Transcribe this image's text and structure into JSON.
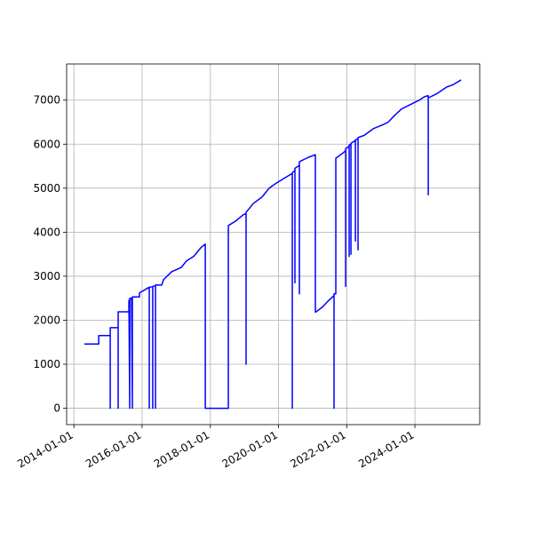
{
  "chart_data": {
    "type": "line",
    "x": [
      "2014-04-23",
      "2014-09-24",
      "2014-09-24",
      "2015-01-25",
      "2015-01-25",
      "2015-01-25",
      "2015-04-20",
      "2015-04-20",
      "2015-04-20",
      "2015-08-13",
      "2015-08-13",
      "2015-08-22",
      "2015-08-22",
      "2015-09-10",
      "2015-09-19",
      "2015-09-19",
      "2015-12-04",
      "2015-12-04",
      "2016-03-18",
      "2016-03-18",
      "2016-03-18",
      "2016-04-24",
      "2016-04-24",
      "2016-04-24",
      "2016-05-24",
      "2016-05-24",
      "2016-05-24",
      "2016-07-30",
      "2016-08-17",
      "2016-11-12",
      "2017-02-24",
      "2017-04-22",
      "2017-07-07",
      "2017-09-22",
      "2017-11-08",
      "2017-11-08",
      "2018-07-13",
      "2018-07-13",
      "2018-09-27",
      "2018-12-22",
      "2019-01-19",
      "2019-01-19",
      "2019-01-19",
      "2019-04-05",
      "2019-07-09",
      "2019-09-23",
      "2019-11-28",
      "2020-02-13",
      "2020-04-29",
      "2020-05-28",
      "2020-05-28",
      "2020-05-28",
      "2020-06-25",
      "2020-06-25",
      "2020-06-25",
      "2020-08-12",
      "2020-08-12",
      "2020-08-12",
      "2020-11-15",
      "2021-01-30",
      "2021-01-30",
      "2021-04-16",
      "2021-06-22",
      "2021-08-18",
      "2021-08-18",
      "2021-08-18",
      "2021-09-06",
      "2021-09-06",
      "2021-11-22",
      "2021-12-20",
      "2021-12-20",
      "2021-12-20",
      "2022-01-27",
      "2022-01-27",
      "2022-01-27",
      "2022-02-15",
      "2022-02-15",
      "2022-02-15",
      "2022-04-04",
      "2022-04-04",
      "2022-04-04",
      "2022-05-02",
      "2022-05-02",
      "2022-05-02",
      "2022-07-08",
      "2022-10-11",
      "2023-02-02",
      "2023-03-21",
      "2023-05-27",
      "2023-08-11",
      "2023-11-14",
      "2024-02-17",
      "2024-04-14",
      "2024-05-23",
      "2024-05-23",
      "2024-05-23",
      "2024-08-26",
      "2024-12-08",
      "2025-02-13",
      "2025-05-10"
    ],
    "series": [
      {
        "color": "#0000ff",
        "values": [
          1460,
          1460,
          1650,
          1650,
          0,
          1830,
          1830,
          0,
          2190,
          2190,
          2450,
          0,
          2500,
          2500,
          0,
          2530,
          2530,
          2620,
          2750,
          0,
          2750,
          2760,
          0,
          2770,
          2780,
          0,
          2800,
          2800,
          2920,
          3100,
          3200,
          3350,
          3450,
          3650,
          3730,
          0,
          0,
          4150,
          4250,
          4400,
          4420,
          1000,
          4450,
          4650,
          4800,
          5000,
          5100,
          5200,
          5300,
          5330,
          0,
          5350,
          5400,
          2850,
          5450,
          5520,
          2600,
          5600,
          5700,
          5760,
          2180,
          2300,
          2450,
          2560,
          0,
          2600,
          2600,
          5680,
          5800,
          5850,
          2770,
          5900,
          5950,
          3450,
          5980,
          6000,
          3500,
          6020,
          6080,
          3800,
          6100,
          6120,
          3600,
          6150,
          6200,
          6350,
          6450,
          6500,
          6650,
          6800,
          6900,
          7000,
          7080,
          7100,
          4850,
          7050,
          7150,
          7300,
          7350,
          7460
        ]
      }
    ],
    "xlim": [
      "2013-10-15",
      "2025-11-25"
    ],
    "xticks": [
      "2014-01-01",
      "2016-01-01",
      "2018-01-01",
      "2020-01-01",
      "2022-01-01",
      "2024-01-01"
    ],
    "ylim": [
      -372,
      7822
    ],
    "yticks": [
      0,
      1000,
      2000,
      3000,
      4000,
      5000,
      6000,
      7000
    ],
    "grid": true
  }
}
